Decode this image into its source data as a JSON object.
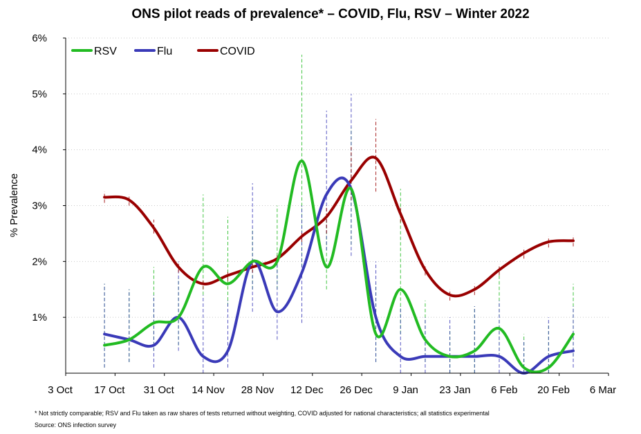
{
  "chart_data": {
    "type": "line",
    "title": "ONS pilot reads of prevalence* – COVID, Flu, RSV – Winter 2022",
    "ylabel": "% Prevalence",
    "xlabel": "",
    "x_ticks": [
      "3 Oct",
      "17 Oct",
      "31 Oct",
      "14 Nov",
      "28 Nov",
      "12 Dec",
      "26 Dec",
      "9 Jan",
      "23 Jan",
      "6 Feb",
      "20 Feb",
      "6 Mar"
    ],
    "y_ticks": [
      "1%",
      "2%",
      "3%",
      "4%",
      "5%",
      "6%"
    ],
    "xlim": [
      "2022-10-03",
      "2023-03-06"
    ],
    "ylim": [
      0,
      6
    ],
    "grid": "horizontal dotted",
    "legend": "top-left",
    "x_dates": [
      "2022-10-14",
      "2022-10-21",
      "2022-10-28",
      "2022-11-04",
      "2022-11-11",
      "2022-11-18",
      "2022-11-25",
      "2022-12-02",
      "2022-12-09",
      "2022-12-16",
      "2022-12-23",
      "2022-12-30",
      "2023-01-06",
      "2023-01-13",
      "2023-01-20",
      "2023-01-27",
      "2023-02-03",
      "2023-02-10",
      "2023-02-17",
      "2023-02-24"
    ],
    "series": [
      {
        "name": "RSV",
        "color": "#22bb22",
        "values": [
          0.5,
          0.6,
          0.9,
          1.0,
          1.9,
          1.6,
          2.0,
          2.0,
          3.8,
          1.9,
          3.3,
          0.7,
          1.5,
          0.6,
          0.3,
          0.4,
          0.8,
          0.1,
          0.1,
          0.7
        ],
        "ci_low": [
          0.1,
          0.2,
          0.4,
          0.5,
          1.4,
          1.2,
          1.5,
          1.5,
          1.9,
          1.5,
          2.3,
          0.2,
          0.7,
          0.2,
          0.0,
          0.0,
          0.3,
          0.0,
          0.0,
          0.3
        ],
        "ci_high": [
          1.6,
          1.5,
          1.9,
          1.7,
          3.2,
          2.8,
          2.6,
          3.0,
          5.7,
          2.8,
          4.4,
          1.6,
          3.3,
          1.3,
          0.8,
          1.2,
          1.9,
          0.7,
          0.9,
          1.6
        ]
      },
      {
        "name": "Flu",
        "color": "#3a3ab8",
        "values": [
          0.7,
          0.6,
          0.5,
          1.0,
          0.3,
          0.4,
          2.0,
          1.1,
          1.8,
          3.2,
          3.3,
          1.0,
          0.3,
          0.3,
          0.3,
          0.3,
          0.3,
          0.0,
          0.3,
          0.4
        ],
        "ci_low": [
          0.1,
          0.2,
          0.1,
          0.4,
          0.0,
          0.1,
          1.1,
          0.6,
          0.9,
          2.2,
          2.1,
          0.2,
          0.0,
          0.0,
          0.0,
          0.0,
          0.0,
          0.0,
          0.0,
          0.1
        ],
        "ci_high": [
          1.6,
          1.5,
          1.4,
          2.0,
          1.4,
          1.3,
          3.4,
          2.1,
          3.0,
          4.7,
          5.0,
          2.0,
          1.2,
          1.0,
          1.0,
          1.2,
          1.3,
          0.6,
          1.0,
          1.2
        ]
      },
      {
        "name": "COVID",
        "color": "#990000",
        "values": [
          3.15,
          3.1,
          2.6,
          1.9,
          1.6,
          1.75,
          1.9,
          2.05,
          2.45,
          2.8,
          3.45,
          3.85,
          2.85,
          1.85,
          1.4,
          1.5,
          1.85,
          2.15,
          2.35,
          2.37
        ],
        "ci_low": [
          3.05,
          3.0,
          2.5,
          1.8,
          1.5,
          1.65,
          1.8,
          1.95,
          2.35,
          2.5,
          3.1,
          3.25,
          2.7,
          1.75,
          1.3,
          1.4,
          1.75,
          2.05,
          2.25,
          2.27
        ],
        "ci_high": [
          3.25,
          3.2,
          2.75,
          2.0,
          1.7,
          1.85,
          2.0,
          2.15,
          2.55,
          3.0,
          4.05,
          4.55,
          3.0,
          1.95,
          1.5,
          1.6,
          1.95,
          2.25,
          2.45,
          2.47
        ]
      }
    ]
  },
  "footnote": "* Not strictly comparable; RSV and Flu taken as raw shares of tests returned without weighting, COVID adjusted for national characteristics; all statistics experimental",
  "source": "Source: ONS infection survey"
}
